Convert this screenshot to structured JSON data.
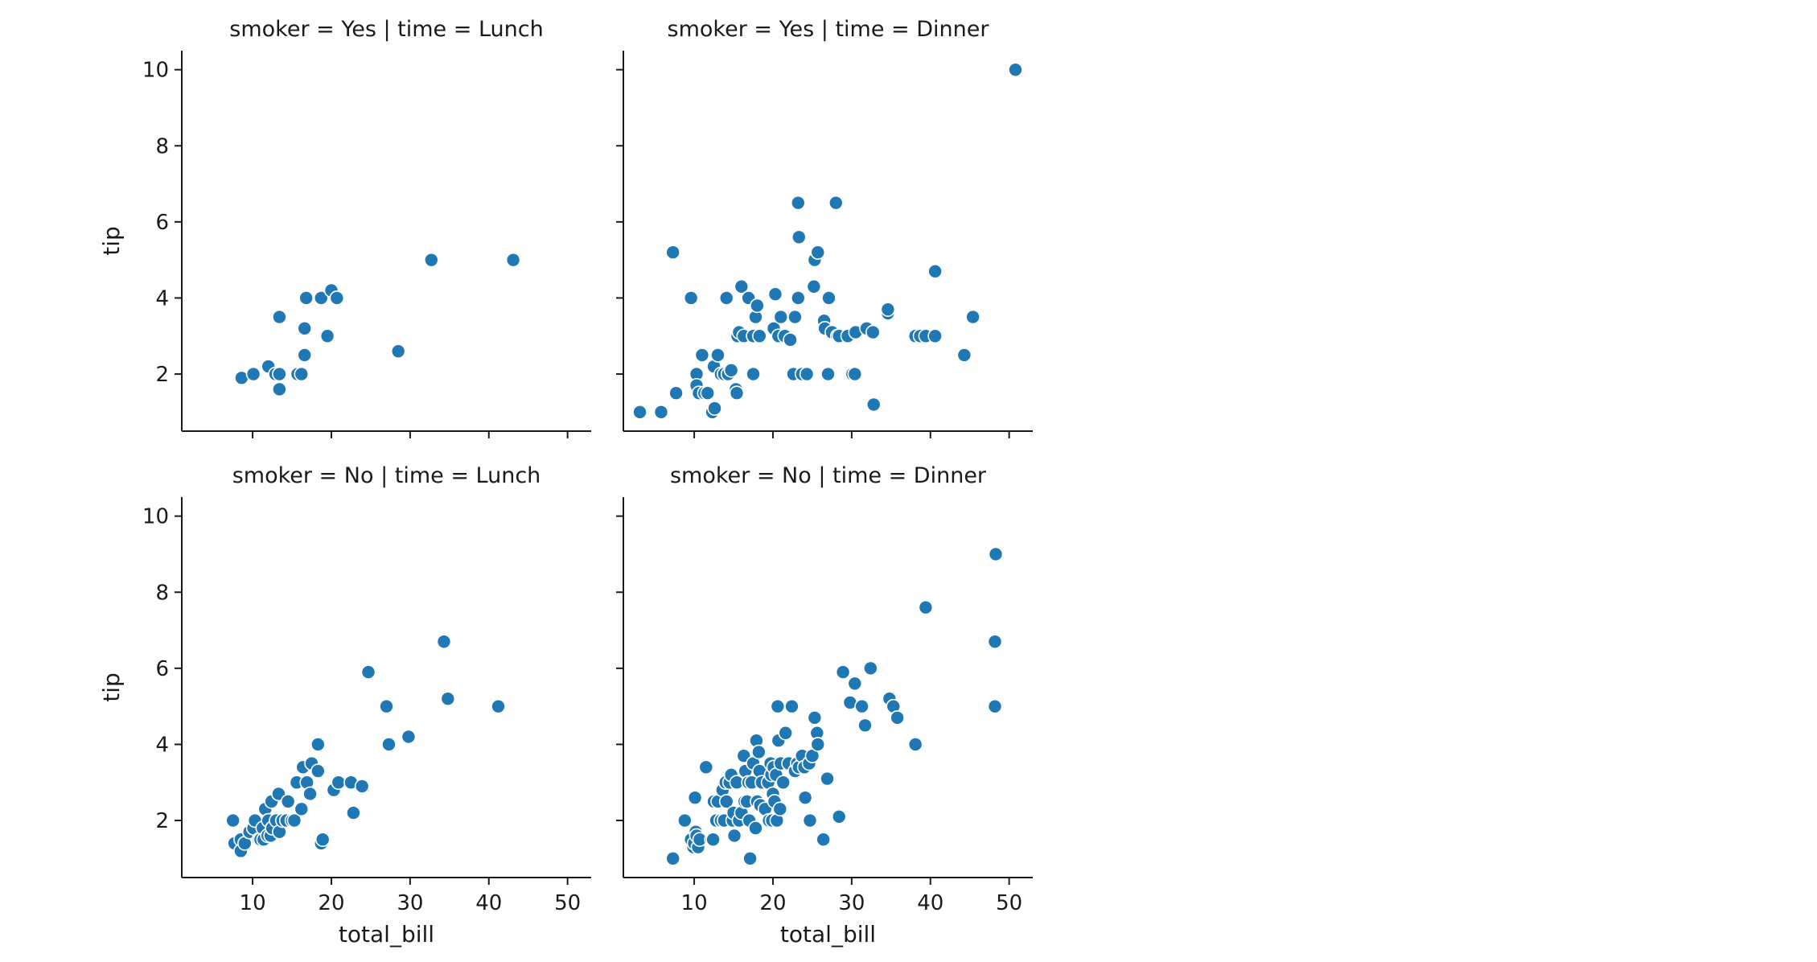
{
  "chart_data": {
    "type": "scatter",
    "x_variable": "total_bill",
    "y_variable": "tip",
    "colors": {
      "marker": "#1f77b4",
      "marker_edge": "#ffffff",
      "axis": "#1a1a1a"
    },
    "shared_axes": {
      "xlim": [
        1,
        53
      ],
      "ylim": [
        0.5,
        10.5
      ],
      "xticks": [
        10,
        20,
        30,
        40,
        50
      ],
      "yticks": [
        2,
        4,
        6,
        8,
        10
      ]
    },
    "panels": [
      {
        "title": "smoker = Yes | time = Lunch",
        "row": "Yes",
        "col": "Lunch",
        "xlabel": "",
        "ylabel": "tip",
        "points": [
          [
            8.6,
            1.9
          ],
          [
            10.1,
            2.0
          ],
          [
            12.0,
            2.2
          ],
          [
            12.9,
            2.0
          ],
          [
            13.4,
            2.0
          ],
          [
            13.4,
            1.6
          ],
          [
            13.4,
            3.5
          ],
          [
            15.7,
            2.0
          ],
          [
            16.2,
            2.0
          ],
          [
            16.6,
            2.5
          ],
          [
            16.6,
            3.2
          ],
          [
            16.8,
            4.0
          ],
          [
            18.7,
            4.0
          ],
          [
            19.5,
            3.0
          ],
          [
            20.0,
            4.2
          ],
          [
            20.7,
            4.0
          ],
          [
            28.5,
            2.6
          ],
          [
            32.7,
            5.0
          ],
          [
            43.1,
            5.0
          ]
        ]
      },
      {
        "title": "smoker = Yes | time = Dinner",
        "row": "Yes",
        "col": "Dinner",
        "xlabel": "",
        "ylabel": "",
        "points": [
          [
            3.1,
            1.0
          ],
          [
            5.8,
            1.0
          ],
          [
            7.3,
            5.2
          ],
          [
            7.7,
            1.5
          ],
          [
            9.6,
            4.0
          ],
          [
            10.3,
            2.0
          ],
          [
            10.3,
            1.7
          ],
          [
            10.6,
            1.5
          ],
          [
            11.0,
            2.5
          ],
          [
            11.3,
            1.5
          ],
          [
            11.7,
            1.5
          ],
          [
            12.3,
            1.0
          ],
          [
            12.5,
            2.2
          ],
          [
            12.6,
            1.1
          ],
          [
            13.0,
            2.5
          ],
          [
            13.4,
            2.0
          ],
          [
            13.8,
            2.0
          ],
          [
            14.1,
            4.0
          ],
          [
            14.3,
            2.0
          ],
          [
            14.7,
            2.1
          ],
          [
            15.3,
            1.6
          ],
          [
            15.4,
            1.5
          ],
          [
            15.5,
            3.0
          ],
          [
            15.7,
            3.1
          ],
          [
            16.0,
            4.3
          ],
          [
            16.3,
            3.0
          ],
          [
            16.9,
            4.0
          ],
          [
            17.5,
            3.0
          ],
          [
            17.5,
            2.0
          ],
          [
            17.8,
            3.5
          ],
          [
            18.0,
            3.8
          ],
          [
            18.3,
            3.0
          ],
          [
            20.1,
            3.2
          ],
          [
            20.3,
            4.1
          ],
          [
            20.7,
            3.0
          ],
          [
            21.0,
            3.5
          ],
          [
            21.5,
            3.0
          ],
          [
            22.2,
            2.9
          ],
          [
            22.6,
            2.0
          ],
          [
            22.8,
            3.5
          ],
          [
            23.2,
            4.0
          ],
          [
            23.2,
            6.5
          ],
          [
            23.3,
            5.6
          ],
          [
            23.7,
            2.0
          ],
          [
            24.3,
            2.0
          ],
          [
            25.2,
            4.3
          ],
          [
            25.3,
            5.0
          ],
          [
            25.7,
            5.2
          ],
          [
            26.5,
            3.4
          ],
          [
            26.6,
            3.2
          ],
          [
            27.0,
            2.0
          ],
          [
            27.1,
            4.0
          ],
          [
            27.5,
            3.1
          ],
          [
            28.0,
            6.5
          ],
          [
            28.2,
            3.0
          ],
          [
            28.4,
            3.0
          ],
          [
            29.5,
            3.0
          ],
          [
            30.1,
            2.0
          ],
          [
            30.4,
            2.0
          ],
          [
            30.5,
            3.1
          ],
          [
            31.9,
            3.2
          ],
          [
            32.7,
            3.1
          ],
          [
            32.8,
            1.2
          ],
          [
            34.6,
            3.6
          ],
          [
            34.6,
            3.7
          ],
          [
            38.1,
            3.0
          ],
          [
            38.7,
            3.0
          ],
          [
            39.4,
            3.0
          ],
          [
            40.6,
            3.0
          ],
          [
            40.6,
            4.7
          ],
          [
            44.3,
            2.5
          ],
          [
            45.4,
            3.5
          ],
          [
            50.8,
            10.0
          ]
        ]
      },
      {
        "title": "smoker = No | time = Lunch",
        "row": "No",
        "col": "Lunch",
        "xlabel": "total_bill",
        "ylabel": "tip",
        "points": [
          [
            7.5,
            2.0
          ],
          [
            7.7,
            1.4
          ],
          [
            8.5,
            1.5
          ],
          [
            8.5,
            1.2
          ],
          [
            9.0,
            1.4
          ],
          [
            9.6,
            1.7
          ],
          [
            10.1,
            1.8
          ],
          [
            10.3,
            2.0
          ],
          [
            10.8,
            1.5
          ],
          [
            11.0,
            1.5
          ],
          [
            11.3,
            1.8
          ],
          [
            11.4,
            1.5
          ],
          [
            11.6,
            2.3
          ],
          [
            11.9,
            1.6
          ],
          [
            12.0,
            2.0
          ],
          [
            12.3,
            1.6
          ],
          [
            12.4,
            2.5
          ],
          [
            12.5,
            1.8
          ],
          [
            13.0,
            2.0
          ],
          [
            13.3,
            2.7
          ],
          [
            13.4,
            1.7
          ],
          [
            13.8,
            2.0
          ],
          [
            14.3,
            2.0
          ],
          [
            14.5,
            2.5
          ],
          [
            15.0,
            2.0
          ],
          [
            15.3,
            2.0
          ],
          [
            15.6,
            3.0
          ],
          [
            16.2,
            2.3
          ],
          [
            16.4,
            3.4
          ],
          [
            16.9,
            3.0
          ],
          [
            17.3,
            2.7
          ],
          [
            17.5,
            3.5
          ],
          [
            18.3,
            3.3
          ],
          [
            18.3,
            4.0
          ],
          [
            18.7,
            1.4
          ],
          [
            18.9,
            1.5
          ],
          [
            20.3,
            2.8
          ],
          [
            20.9,
            3.0
          ],
          [
            22.5,
            3.0
          ],
          [
            22.8,
            2.2
          ],
          [
            23.9,
            2.9
          ],
          [
            24.7,
            5.9
          ],
          [
            27.0,
            5.0
          ],
          [
            27.3,
            4.0
          ],
          [
            29.8,
            4.2
          ],
          [
            34.3,
            6.7
          ],
          [
            34.8,
            5.2
          ],
          [
            41.2,
            5.0
          ]
        ]
      },
      {
        "title": "smoker = No | time = Dinner",
        "row": "No",
        "col": "Dinner",
        "xlabel": "total_bill",
        "ylabel": "",
        "points": [
          [
            7.3,
            1.0
          ],
          [
            8.8,
            2.0
          ],
          [
            9.6,
            1.5
          ],
          [
            9.9,
            1.3
          ],
          [
            10.0,
            1.4
          ],
          [
            10.1,
            2.6
          ],
          [
            10.2,
            1.7
          ],
          [
            10.3,
            1.6
          ],
          [
            10.5,
            1.3
          ],
          [
            10.7,
            1.5
          ],
          [
            11.5,
            3.4
          ],
          [
            12.2,
            1.5
          ],
          [
            12.4,
            1.5
          ],
          [
            12.5,
            2.5
          ],
          [
            12.8,
            2.0
          ],
          [
            13.0,
            2.5
          ],
          [
            13.4,
            2.0
          ],
          [
            13.6,
            2.8
          ],
          [
            13.8,
            2.0
          ],
          [
            14.0,
            3.0
          ],
          [
            14.1,
            2.5
          ],
          [
            14.5,
            3.0
          ],
          [
            14.7,
            3.2
          ],
          [
            14.9,
            2.0
          ],
          [
            15.0,
            2.2
          ],
          [
            15.1,
            1.6
          ],
          [
            15.4,
            3.0
          ],
          [
            15.7,
            2.0
          ],
          [
            16.0,
            2.2
          ],
          [
            16.3,
            3.7
          ],
          [
            16.4,
            2.5
          ],
          [
            16.5,
            3.3
          ],
          [
            16.7,
            2.5
          ],
          [
            16.9,
            3.0
          ],
          [
            17.0,
            2.0
          ],
          [
            17.1,
            1.0
          ],
          [
            17.3,
            3.0
          ],
          [
            17.5,
            3.5
          ],
          [
            17.8,
            1.8
          ],
          [
            17.9,
            4.1
          ],
          [
            18.0,
            2.5
          ],
          [
            18.2,
            3.8
          ],
          [
            18.3,
            3.3
          ],
          [
            18.4,
            2.4
          ],
          [
            18.6,
            3.0
          ],
          [
            19.0,
            2.3
          ],
          [
            19.4,
            3.0
          ],
          [
            19.5,
            2.0
          ],
          [
            19.7,
            3.5
          ],
          [
            19.8,
            3.2
          ],
          [
            19.9,
            2.0
          ],
          [
            20.0,
            2.7
          ],
          [
            20.1,
            3.4
          ],
          [
            20.2,
            2.5
          ],
          [
            20.4,
            3.2
          ],
          [
            20.5,
            2.0
          ],
          [
            20.6,
            5.0
          ],
          [
            20.7,
            4.1
          ],
          [
            20.9,
            2.3
          ],
          [
            21.0,
            3.5
          ],
          [
            21.3,
            3.0
          ],
          [
            21.6,
            4.3
          ],
          [
            22.0,
            3.5
          ],
          [
            22.4,
            5.0
          ],
          [
            22.8,
            3.3
          ],
          [
            23.1,
            3.5
          ],
          [
            23.3,
            3.4
          ],
          [
            23.7,
            3.7
          ],
          [
            24.0,
            3.4
          ],
          [
            24.1,
            2.6
          ],
          [
            24.6,
            3.5
          ],
          [
            24.7,
            2.0
          ],
          [
            25.0,
            3.7
          ],
          [
            25.3,
            4.7
          ],
          [
            25.6,
            4.3
          ],
          [
            25.7,
            4.0
          ],
          [
            26.4,
            1.5
          ],
          [
            26.9,
            3.1
          ],
          [
            28.4,
            2.1
          ],
          [
            28.9,
            5.9
          ],
          [
            29.8,
            5.1
          ],
          [
            30.4,
            5.6
          ],
          [
            31.3,
            5.0
          ],
          [
            31.7,
            4.5
          ],
          [
            32.4,
            6.0
          ],
          [
            34.8,
            5.2
          ],
          [
            35.3,
            5.0
          ],
          [
            35.8,
            4.7
          ],
          [
            38.1,
            4.0
          ],
          [
            39.4,
            7.6
          ],
          [
            48.2,
            5.0
          ],
          [
            48.2,
            6.7
          ],
          [
            48.3,
            9.0
          ]
        ]
      }
    ]
  }
}
